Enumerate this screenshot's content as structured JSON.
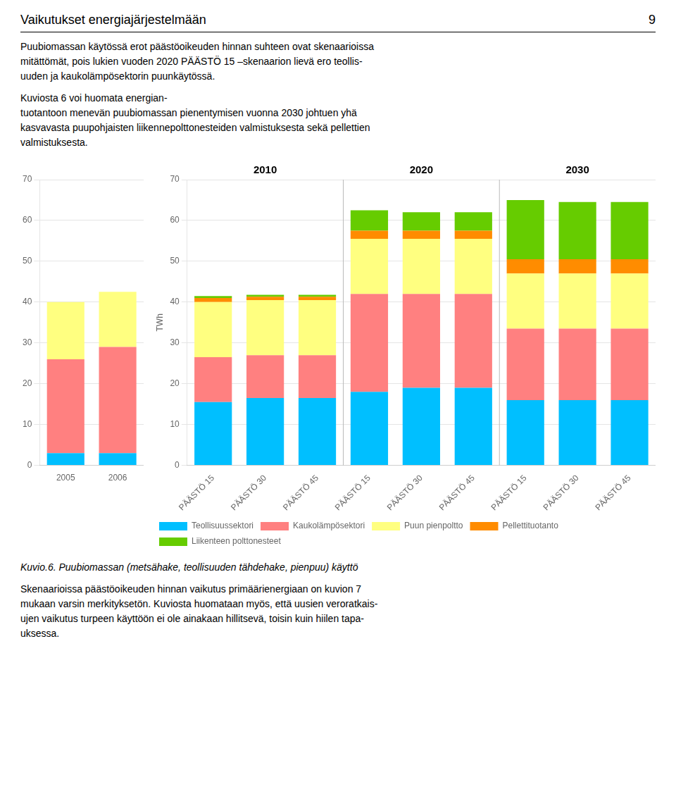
{
  "title": "Vaikutukset energiajärjestelmään",
  "annotations": [
    "9",
    "Puubiomassan käytössä erot päästöoikeuden hinnan suhteen ovat skenaarioissa\nmitättömät, pois lukien vuoden 2020 PÄÄSTÖ 15 –skenaarion lievä ero teollis-\nuuden ja kaukolämpösektorin puunkäytössä.",
    "Kuviosta 6 voi huomata energian-\ntuotantoon menevän puubiomassan pienentymisen vuonna 2030 johtuen yhä\nkasvavasta puupohjaisten liikennepolttonesteiden valmistuksesta sekä pellettien\nvalmistuksesta.",
    "Kuvio.6. Puubiomassan (metsähake, teollisuuden tähdehake, pienpuu) käyttö",
    "Skenaarioissa päästöoikeuden hinnan vaikutus primäärienergiaan on kuvion 7\nmukaan varsin merkityksetön. Kuviosta huomataan myös, että uusien veroratkais-\nujen vaikutus turpeen käyttöön ei ole ainakaan hillitsevä, toisin kuin hiilen tapa-\nuksessa."
  ],
  "chart_data": [
    {
      "type": "bar",
      "stacked": true,
      "grid": true,
      "categories": [
        "2005",
        "2006"
      ],
      "series": [
        {
          "name": "Teollisuussektori",
          "color": "#00BFFF",
          "values": [
            3.0,
            3.0
          ]
        },
        {
          "name": "Kaukolämpösektori",
          "color": "#FF8080",
          "values": [
            23.0,
            26.0
          ]
        },
        {
          "name": "Puun pienpoltto",
          "color": "#FFFF80",
          "values": [
            14.0,
            13.5
          ]
        },
        {
          "name": "Pellettituotanto",
          "color": "#FF8C00",
          "values": [
            0.0,
            0.0
          ]
        },
        {
          "name": "Liikenteen polttonesteet",
          "color": "#66CC00",
          "values": [
            0.0,
            0.0
          ]
        }
      ],
      "ylim": [
        0,
        70
      ],
      "yticks": [
        0,
        10,
        20,
        30,
        40,
        50,
        60,
        70
      ]
    },
    {
      "type": "bar",
      "stacked": true,
      "grid": true,
      "legend": "bottom",
      "ylabel": "TWh",
      "categories": [
        "PÄÄSTÖ 15",
        "PÄÄSTÖ 30",
        "PÄÄSTÖ 45",
        "PÄÄSTÖ 15",
        "PÄÄSTÖ 30",
        "PÄÄSTÖ 45",
        "PÄÄSTÖ 15",
        "PÄÄSTÖ 30",
        "PÄÄSTÖ 45"
      ],
      "annotations": [
        "2010",
        "2020",
        "2030"
      ],
      "series": [
        {
          "name": "Teollisuussektori",
          "color": "#00BFFF",
          "values": [
            15.5,
            16.5,
            16.5,
            18.0,
            19.0,
            19.0,
            16.0,
            16.0,
            16.0
          ]
        },
        {
          "name": "Kaukolämpösektori",
          "color": "#FF8080",
          "values": [
            11.0,
            10.5,
            10.5,
            24.0,
            23.0,
            23.0,
            17.5,
            17.5,
            17.5
          ]
        },
        {
          "name": "Puun pienpoltto",
          "color": "#FFFF80",
          "values": [
            13.5,
            13.5,
            13.5,
            13.5,
            13.5,
            13.5,
            13.5,
            13.5,
            13.5
          ]
        },
        {
          "name": "Pellettituotanto",
          "color": "#FF8C00",
          "values": [
            1.0,
            0.8,
            0.8,
            2.0,
            2.0,
            2.0,
            3.5,
            3.5,
            3.5
          ]
        },
        {
          "name": "Liikenteen polttonesteet",
          "color": "#66CC00",
          "values": [
            0.5,
            0.5,
            0.5,
            5.0,
            4.5,
            4.5,
            14.5,
            14.0,
            14.0
          ]
        }
      ],
      "ylim": [
        0,
        70
      ],
      "yticks": [
        0,
        10,
        20,
        30,
        40,
        50,
        60,
        70
      ]
    }
  ]
}
